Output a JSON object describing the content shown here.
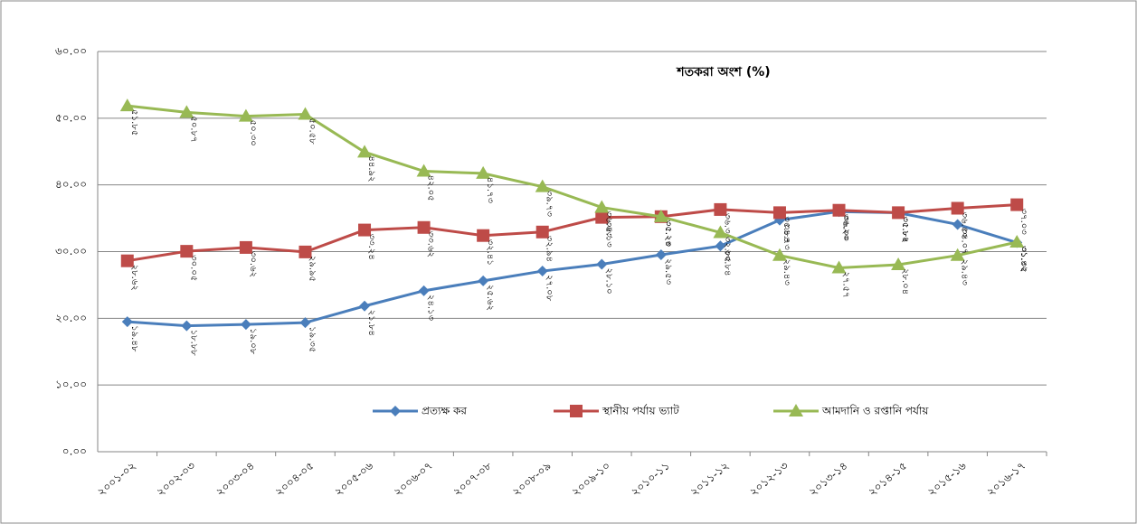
{
  "chart_data": {
    "type": "line",
    "title": "শতকরা অংশ (%)",
    "categories": [
      "২০০১-০২",
      "২০০২-০৩",
      "২০০৩-০৪",
      "২০০৪-০৫",
      "২০০৫-০৬",
      "২০০৬-০৭",
      "২০০৭-০৮",
      "২০০৮-০৯",
      "২০০৯-১০",
      "২০১০-১১",
      "২০১১-১২",
      "২০১২-১৩",
      "২০১৩-১৪",
      "২০১৪-১৫",
      "২০১৫-১৬",
      "২০১৬-১৭"
    ],
    "ylim": [
      0,
      60
    ],
    "yticks": [
      {
        "value": 0,
        "label": "০.০০"
      },
      {
        "value": 10,
        "label": "১০.০০"
      },
      {
        "value": 20,
        "label": "২০.০০"
      },
      {
        "value": 30,
        "label": "৩০.০০"
      },
      {
        "value": 40,
        "label": "৪০.০০"
      },
      {
        "value": 50,
        "label": "৫০.০০"
      },
      {
        "value": 60,
        "label": "৬০.০০"
      }
    ],
    "grid": true,
    "legend": "bottom",
    "series": [
      {
        "name": "প্রত্যক্ষ কর",
        "color": "#4a7ebb",
        "marker": "diamond",
        "values": [
          19.48,
          18.88,
          19.08,
          19.35,
          21.84,
          24.13,
          25.62,
          27.08,
          28.1,
          29.53,
          30.84,
          34.73,
          36.0,
          35.82,
          34.07,
          31.35
        ],
        "value_labels": [
          "১৯.৪৮",
          "১৮.৮৮",
          "১৯.০৮",
          "১৯.৩৫",
          "২১.৮৪",
          "২৪.১৩",
          "২৫.৬২",
          "২৭.০৮",
          "২৮.১০",
          "২৯.৫৩",
          "৩০.৮৪",
          "৩৪.৭৩",
          "৩৬.০০",
          "৩৫.৮২",
          "৩৪.০৭",
          "৩১.৩৫"
        ]
      },
      {
        "name": "স্থানীয় পর্যায়  ভ্যাট",
        "color": "#be4b48",
        "marker": "square",
        "values": [
          28.62,
          30.05,
          30.62,
          29.95,
          33.24,
          33.62,
          32.41,
          32.94,
          35.13,
          35.24,
          36.31,
          35.84,
          36.2,
          35.84,
          36.5,
          37.03
        ],
        "value_labels": [
          "২৮.৬২",
          "৩০.০৫",
          "৩০.৬২",
          "২৯.৯৫",
          "৩৩.২৪",
          "৩৩.৬২",
          "৩২.৪১",
          "৩২.৯৪",
          "৩৫.১৩",
          "৩৫.২৪",
          "৩৬.৩১",
          "৩৫.৮৪",
          "৩৬.২০",
          "৩৫.৮৪",
          "৩৬.৫০",
          "৩৭.০৩"
        ]
      },
      {
        "name": "আমদানি ও রপ্তানি পর্যায়",
        "color": "#98b954",
        "marker": "triangle",
        "values": [
          51.85,
          50.87,
          50.3,
          50.58,
          44.92,
          42.05,
          41.73,
          39.73,
          36.63,
          35.23,
          32.85,
          29.43,
          27.57,
          28.04,
          29.43,
          31.42
        ],
        "value_labels": [
          "৫১.৮৫",
          "৫০.৮৭",
          "৫০.৩০",
          "৫০.৫৮",
          "৪৪.৯২",
          "৪২.০৫",
          "৪১.৭৩",
          "৩৯.৭৩",
          "৩৬.৬৩",
          "৩৫.২৩",
          "৩২.৮৫",
          "২৯.৪৩",
          "২৭.৫৭",
          "২৮.০৪",
          "২৯.৪৩",
          "৩১.৪২"
        ]
      }
    ]
  }
}
